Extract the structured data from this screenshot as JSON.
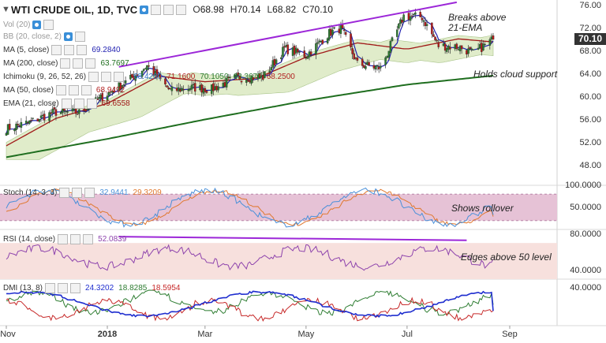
{
  "header": {
    "symbol": "WTI CRUDE OIL, 1D, TVC",
    "open_label": "O",
    "open": "68.98",
    "high_label": "H",
    "high": "70.14",
    "low_label": "L",
    "low": "68.82",
    "close_label": "C",
    "close": "70.10"
  },
  "indicators": {
    "vol": {
      "label": "Vol (20)"
    },
    "bb": {
      "label": "BB (20, close, 2)"
    },
    "ma5": {
      "label": "MA (5, close)",
      "value": "69.2840"
    },
    "ma200": {
      "label": "MA (200, close)",
      "value": "63.7697"
    },
    "ichimoku": {
      "label": "Ichimoku (9, 26, 52, 26)",
      "v1": "68.4200",
      "v2": "71.1600",
      "v3": "70.1050",
      "v4": "63.3675",
      "v5": "68.2500"
    },
    "ma50": {
      "label": "MA (50, close)",
      "value": "68.9492"
    },
    "ema21": {
      "label": "EMA (21, close)",
      "value": "69.6558"
    },
    "stoch": {
      "label": "Stoch (14, 3, 3)",
      "k": "32.9441",
      "d": "29.3209"
    },
    "rsi": {
      "label": "RSI (14, close)",
      "value": "52.0839"
    },
    "dmi": {
      "label": "DMI (13, 8)",
      "plus": "24.3202",
      "minus": "18.8285",
      "adx": "18.5954"
    }
  },
  "annotations": {
    "breaks": "Breaks above\n21-EMA",
    "cloud": "Holds cloud support",
    "rollover": "Shows rollover",
    "edges": "Edges above 50 level"
  },
  "price_tag": "70.10",
  "colors": {
    "up": "#2e7d32",
    "down": "#b71c1c",
    "ema21": "#a01818",
    "ma5": "#1f1fb0",
    "ma200": "#1f6e1f",
    "trend": "#9c27d8",
    "cloud": "#d6e5b8",
    "stoch_band": "#e6c2d6",
    "stoch_k": "#4a90d9",
    "stoch_d": "#e0782e",
    "rsi_band": "#f7e0dd",
    "rsi_line": "#8e44ad",
    "dmi_plus": "#2e7d32",
    "dmi_minus": "#c62828",
    "dmi_adx": "#1f2ecf"
  },
  "chart_data": [
    {
      "type": "candlestick",
      "title": "WTI CRUDE OIL, 1D, TVC",
      "ylim": [
        45,
        77
      ],
      "yticks": [
        48,
        52,
        56,
        60,
        64,
        68,
        72,
        76
      ],
      "ytick_labels": [
        "48.00",
        "52.00",
        "56.00",
        "60.00",
        "64.00",
        "68.00",
        "72.00",
        "76.00"
      ],
      "x_tick_labels": [
        "Nov",
        "2018",
        "Mar",
        "May",
        "Jul",
        "Sep"
      ],
      "x_tick_dates": [
        "2017-11-01",
        "2018-01-01",
        "2018-03-01",
        "2018-05-01",
        "2018-07-01",
        "2018-09-01"
      ],
      "x_range": [
        "2017-11-01",
        "2018-09-01"
      ],
      "close_anchors": [
        {
          "date": "2017-11-01",
          "close": 54.5
        },
        {
          "date": "2017-11-15",
          "close": 55.6
        },
        {
          "date": "2017-11-30",
          "close": 57.4
        },
        {
          "date": "2017-12-15",
          "close": 57.3
        },
        {
          "date": "2017-12-31",
          "close": 60.4
        },
        {
          "date": "2018-01-15",
          "close": 63.2
        },
        {
          "date": "2018-01-25",
          "close": 65.5
        },
        {
          "date": "2018-02-08",
          "close": 61.1
        },
        {
          "date": "2018-02-20",
          "close": 61.7
        },
        {
          "date": "2018-03-05",
          "close": 61.4
        },
        {
          "date": "2018-03-20",
          "close": 63.4
        },
        {
          "date": "2018-04-05",
          "close": 63.5
        },
        {
          "date": "2018-04-18",
          "close": 68.5
        },
        {
          "date": "2018-05-01",
          "close": 67.3
        },
        {
          "date": "2018-05-15",
          "close": 71.2
        },
        {
          "date": "2018-05-22",
          "close": 72.1
        },
        {
          "date": "2018-06-01",
          "close": 65.8
        },
        {
          "date": "2018-06-15",
          "close": 65.1
        },
        {
          "date": "2018-06-29",
          "close": 74.2
        },
        {
          "date": "2018-07-10",
          "close": 74.0
        },
        {
          "date": "2018-07-20",
          "close": 69.0
        },
        {
          "date": "2018-08-01",
          "close": 68.8
        },
        {
          "date": "2018-08-10",
          "close": 67.7
        },
        {
          "date": "2018-08-22",
          "close": 70.1
        }
      ],
      "ema21_anchors": [
        {
          "date": "2017-11-01",
          "value": 51.5
        },
        {
          "date": "2017-12-01",
          "value": 56.3
        },
        {
          "date": "2018-01-01",
          "value": 58.9
        },
        {
          "date": "2018-02-01",
          "value": 63.7
        },
        {
          "date": "2018-03-01",
          "value": 62.7
        },
        {
          "date": "2018-04-01",
          "value": 63.3
        },
        {
          "date": "2018-05-01",
          "value": 67.0
        },
        {
          "date": "2018-06-01",
          "value": 69.5
        },
        {
          "date": "2018-07-01",
          "value": 68.4
        },
        {
          "date": "2018-08-01",
          "value": 70.2
        },
        {
          "date": "2018-08-22",
          "value": 69.66
        }
      ],
      "ma200_anchors": [
        {
          "date": "2017-11-01",
          "value": 49.5
        },
        {
          "date": "2018-01-01",
          "value": 52.7
        },
        {
          "date": "2018-03-01",
          "value": 56.1
        },
        {
          "date": "2018-05-01",
          "value": 59.4
        },
        {
          "date": "2018-07-01",
          "value": 62.2
        },
        {
          "date": "2018-08-22",
          "value": 63.77
        }
      ],
      "trendline": [
        {
          "date": "2018-01-08",
          "value": 65.3
        },
        {
          "date": "2018-07-31",
          "value": 76.6
        }
      ]
    },
    {
      "type": "line",
      "title": "Stoch (14, 3, 3)",
      "ylim": [
        0,
        100
      ],
      "yticks": [
        100,
        50
      ],
      "ytick_labels": [
        "100.0000",
        "50.0000"
      ],
      "band": [
        20,
        80
      ],
      "k_last": 32.9441,
      "d_last": 29.3209
    },
    {
      "type": "line",
      "title": "RSI (14, close)",
      "ylim": [
        30,
        85
      ],
      "yticks": [
        80,
        40
      ],
      "ytick_labels": [
        "80.0000",
        "40.0000"
      ],
      "band": [
        30,
        70
      ],
      "last": 52.0839,
      "trendline": [
        {
          "date": "2018-01-08",
          "value": 77
        },
        {
          "date": "2018-08-06",
          "value": 73
        }
      ]
    },
    {
      "type": "line",
      "title": "DMI (13, 8)",
      "ylim": [
        5,
        48
      ],
      "yticks": [
        40
      ],
      "ytick_labels": [
        "40.0000"
      ],
      "series": [
        {
          "name": "+DI",
          "last": 24.3202
        },
        {
          "name": "-DI",
          "last": 18.8285
        },
        {
          "name": "ADX",
          "last": 18.5954
        }
      ]
    }
  ]
}
